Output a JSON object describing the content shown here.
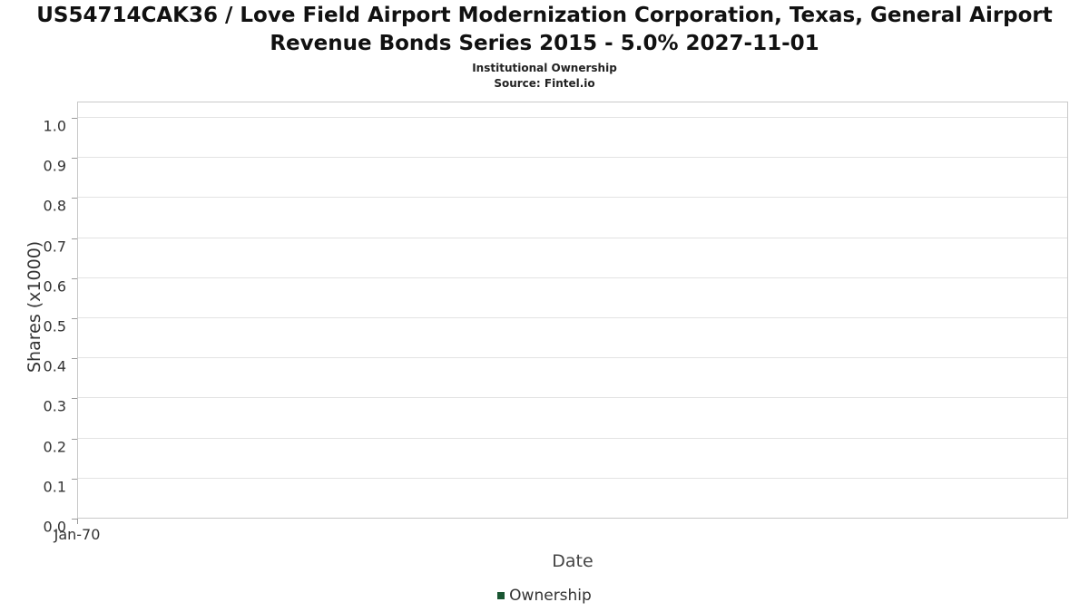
{
  "header": {
    "title": "US54714CAK36 / Love Field Airport Modernization Corporation, Texas, General Airport Revenue Bonds Series 2015 - 5.0% 2027-11-01",
    "subtitle": "Institutional Ownership",
    "source": "Source: Fintel.io"
  },
  "chart_data": {
    "type": "line",
    "title": "US54714CAK36 / Love Field Airport Modernization Corporation, Texas, General Airport Revenue Bonds Series 2015 - 5.0% 2027-11-01",
    "subtitle": "Institutional Ownership",
    "source": "Source: Fintel.io",
    "xlabel": "Date",
    "ylabel": "Shares (x1000)",
    "ylim": [
      0.0,
      1.0
    ],
    "yticks": [
      0.0,
      0.1,
      0.2,
      0.3,
      0.4,
      0.5,
      0.6,
      0.7,
      0.8,
      0.9,
      1.0
    ],
    "xticks": [
      "Jan-70"
    ],
    "grid": true,
    "legend_position": "bottom",
    "series": [
      {
        "name": "Ownership",
        "color": "#1a5632",
        "x": [],
        "values": []
      }
    ],
    "note": "empty plot - no data points rendered"
  }
}
